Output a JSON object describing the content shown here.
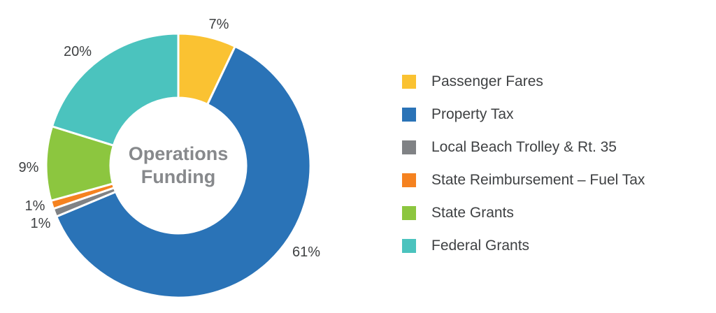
{
  "chart_data": {
    "type": "pie",
    "subtype": "donut",
    "title": "Operations Funding",
    "center_label_lines": [
      "Operations",
      "Funding"
    ],
    "start_angle_deg": 0,
    "direction": "clockwise",
    "legend_position": "right",
    "background": "#FFFFFF",
    "slices": [
      {
        "label": "Passenger Fares",
        "value": 7,
        "pct_label": "7%",
        "color": "#FAC232"
      },
      {
        "label": "Property Tax",
        "value": 61,
        "pct_label": "61%",
        "color": "#2A73B7"
      },
      {
        "label": "Local Beach Trolley & Rt. 35",
        "value": 1,
        "pct_label": "1%",
        "color": "#808285"
      },
      {
        "label": "State Reimbursement – Fuel Tax",
        "value": 1,
        "pct_label": "1%",
        "color": "#F58220"
      },
      {
        "label": "State Grants",
        "value": 9,
        "pct_label": "9%",
        "color": "#8CC63F"
      },
      {
        "label": "Federal Grants",
        "value": 20,
        "pct_label": "20%",
        "color": "#4BC3BE"
      }
    ],
    "colors": {
      "percent_label_text": "#3E4042",
      "center_label_text": "#87898C",
      "legend_text": "#3F4143",
      "slice_separator": "#FFFFFF"
    }
  }
}
